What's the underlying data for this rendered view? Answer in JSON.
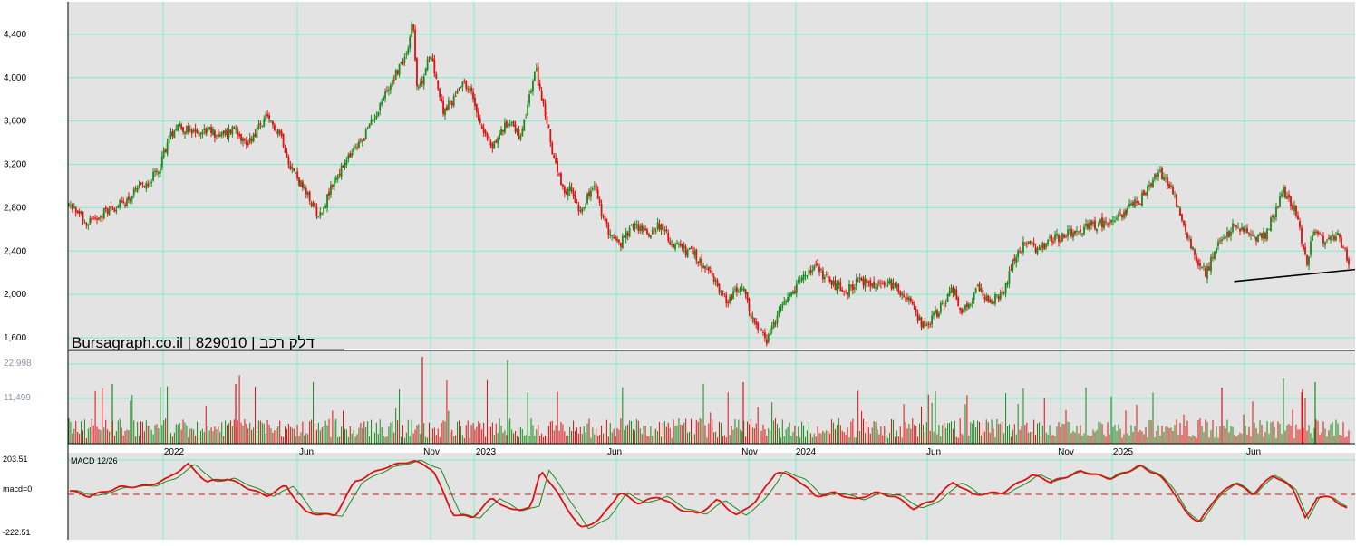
{
  "title": "Bursagraph.co.il | 829010 | דלק רכב",
  "colors": {
    "background": "#e3e3e3",
    "grid": "#7df0c6",
    "up": "#1a8a1a",
    "down": "#e01010",
    "macd_line": "#e01010",
    "signal_line": "#1a8a1a",
    "zero_line": "#e01010",
    "trend_line": "#000000"
  },
  "chart_data": [
    {
      "type": "candlestick",
      "title": "Bursagraph.co.il | 829010 | דלק רכב",
      "ylim": [
        1500,
        4700
      ],
      "y_ticks": [
        1600,
        2000,
        2400,
        2800,
        3200,
        3600,
        4000,
        4400
      ],
      "y_tick_labels": [
        "1,600",
        "2,000",
        "2,400",
        "2,800",
        "3,200",
        "3,600",
        "4,000",
        "4,400"
      ],
      "x_tick_labels": [
        "2022",
        "Jun",
        "Nov",
        "2023",
        "Jun",
        "Nov",
        "2024",
        "Jun",
        "Nov",
        "2025",
        "Jun"
      ],
      "grid": true,
      "close_path": [
        {
          "t": 0,
          "v": 2820
        },
        {
          "t": 0.01,
          "v": 2750
        },
        {
          "t": 0.02,
          "v": 2660
        },
        {
          "t": 0.035,
          "v": 2760
        },
        {
          "t": 0.055,
          "v": 2840
        },
        {
          "t": 0.075,
          "v": 3000
        },
        {
          "t": 0.09,
          "v": 3120
        },
        {
          "t": 0.1,
          "v": 3400
        },
        {
          "t": 0.11,
          "v": 3580
        },
        {
          "t": 0.125,
          "v": 3480
        },
        {
          "t": 0.14,
          "v": 3520
        },
        {
          "t": 0.155,
          "v": 3460
        },
        {
          "t": 0.17,
          "v": 3550
        },
        {
          "t": 0.18,
          "v": 3380
        },
        {
          "t": 0.19,
          "v": 3500
        },
        {
          "t": 0.2,
          "v": 3620
        },
        {
          "t": 0.215,
          "v": 3500
        },
        {
          "t": 0.225,
          "v": 3200
        },
        {
          "t": 0.24,
          "v": 2950
        },
        {
          "t": 0.255,
          "v": 2720
        },
        {
          "t": 0.27,
          "v": 3050
        },
        {
          "t": 0.285,
          "v": 3260
        },
        {
          "t": 0.3,
          "v": 3450
        },
        {
          "t": 0.315,
          "v": 3720
        },
        {
          "t": 0.33,
          "v": 4000
        },
        {
          "t": 0.343,
          "v": 4200
        },
        {
          "t": 0.35,
          "v": 4540
        },
        {
          "t": 0.355,
          "v": 3850
        },
        {
          "t": 0.365,
          "v": 4150
        },
        {
          "t": 0.37,
          "v": 4180
        },
        {
          "t": 0.38,
          "v": 3700
        },
        {
          "t": 0.39,
          "v": 3780
        },
        {
          "t": 0.4,
          "v": 3980
        },
        {
          "t": 0.41,
          "v": 3850
        },
        {
          "t": 0.42,
          "v": 3560
        },
        {
          "t": 0.43,
          "v": 3350
        },
        {
          "t": 0.44,
          "v": 3500
        },
        {
          "t": 0.45,
          "v": 3620
        },
        {
          "t": 0.46,
          "v": 3420
        },
        {
          "t": 0.47,
          "v": 3880
        },
        {
          "t": 0.475,
          "v": 4080
        },
        {
          "t": 0.485,
          "v": 3650
        },
        {
          "t": 0.495,
          "v": 3200
        },
        {
          "t": 0.505,
          "v": 2880
        },
        {
          "t": 0.51,
          "v": 3000
        },
        {
          "t": 0.52,
          "v": 2780
        },
        {
          "t": 0.535,
          "v": 3000
        },
        {
          "t": 0.545,
          "v": 2650
        },
        {
          "t": 0.56,
          "v": 2450
        },
        {
          "t": 0.575,
          "v": 2650
        },
        {
          "t": 0.59,
          "v": 2560
        },
        {
          "t": 0.6,
          "v": 2650
        },
        {
          "t": 0.615,
          "v": 2450
        },
        {
          "t": 0.635,
          "v": 2380
        },
        {
          "t": 0.655,
          "v": 2150
        },
        {
          "t": 0.67,
          "v": 1940
        },
        {
          "t": 0.685,
          "v": 2080
        },
        {
          "t": 0.69,
          "v": 1920
        },
        {
          "t": 0.7,
          "v": 1680
        },
        {
          "t": 0.71,
          "v": 1560
        },
        {
          "t": 0.725,
          "v": 1860
        },
        {
          "t": 0.735,
          "v": 1980
        },
        {
          "t": 0.745,
          "v": 2150
        },
        {
          "t": 0.76,
          "v": 2240
        },
        {
          "t": 0.775,
          "v": 2120
        },
        {
          "t": 0.79,
          "v": 2020
        },
        {
          "t": 0.805,
          "v": 2130
        },
        {
          "t": 0.82,
          "v": 2080
        },
        {
          "t": 0.84,
          "v": 2100
        },
        {
          "t": 0.855,
          "v": 1930
        },
        {
          "t": 0.87,
          "v": 1700
        },
        {
          "t": 0.885,
          "v": 1850
        },
        {
          "t": 0.9,
          "v": 2050
        },
        {
          "t": 0.91,
          "v": 1820
        },
        {
          "t": 0.925,
          "v": 2050
        },
        {
          "t": 0.935,
          "v": 1950
        },
        {
          "t": 0.95,
          "v": 1980
        },
        {
          "t": 0.96,
          "v": 2300
        },
        {
          "t": 0.975,
          "v": 2500
        },
        {
          "t": 0.985,
          "v": 2400
        },
        {
          "t": 1.0,
          "v": 2500
        }
      ],
      "close_path_part2": [
        {
          "t": 0,
          "v": 2500
        },
        {
          "t": 0.12,
          "v": 2620
        },
        {
          "t": 0.22,
          "v": 2700
        },
        {
          "t": 0.3,
          "v": 2880
        },
        {
          "t": 0.36,
          "v": 3150
        },
        {
          "t": 0.4,
          "v": 3000
        },
        {
          "t": 0.45,
          "v": 2600
        },
        {
          "t": 0.5,
          "v": 2250
        },
        {
          "t": 0.52,
          "v": 2200
        },
        {
          "t": 0.56,
          "v": 2450
        },
        {
          "t": 0.62,
          "v": 2650
        },
        {
          "t": 0.68,
          "v": 2500
        },
        {
          "t": 0.72,
          "v": 2550
        },
        {
          "t": 0.78,
          "v": 2950
        },
        {
          "t": 0.82,
          "v": 2780
        },
        {
          "t": 0.86,
          "v": 2250
        },
        {
          "t": 0.88,
          "v": 2620
        },
        {
          "t": 0.92,
          "v": 2500
        },
        {
          "t": 0.96,
          "v": 2560
        },
        {
          "t": 1.0,
          "v": 2300
        }
      ],
      "trend_line": {
        "from": {
          "date_fraction": 0.906,
          "value": 2120
        },
        "to": {
          "date_fraction": 1.0,
          "value": 2230
        }
      }
    },
    {
      "type": "bar",
      "name": "volume",
      "y_ticks": [
        11499,
        22998
      ],
      "y_tick_labels": [
        "11,499",
        "22,998"
      ],
      "ylim": [
        0,
        23000
      ]
    },
    {
      "type": "line",
      "name": "MACD 12/26",
      "ylim": [
        -222.51,
        203.51
      ],
      "y_tick_labels": [
        "203.51",
        "macd=0",
        "-222.51"
      ],
      "macd_path": [
        {
          "t": 0,
          "v": 10
        },
        {
          "t": 0.02,
          "v": -20
        },
        {
          "t": 0.05,
          "v": 30
        },
        {
          "t": 0.08,
          "v": 40
        },
        {
          "t": 0.1,
          "v": 80
        },
        {
          "t": 0.12,
          "v": 160
        },
        {
          "t": 0.14,
          "v": 60
        },
        {
          "t": 0.16,
          "v": 80
        },
        {
          "t": 0.18,
          "v": 30
        },
        {
          "t": 0.2,
          "v": -20
        },
        {
          "t": 0.22,
          "v": 40
        },
        {
          "t": 0.24,
          "v": -110
        },
        {
          "t": 0.27,
          "v": -130
        },
        {
          "t": 0.29,
          "v": 60
        },
        {
          "t": 0.32,
          "v": 140
        },
        {
          "t": 0.35,
          "v": 180
        },
        {
          "t": 0.37,
          "v": 130
        },
        {
          "t": 0.39,
          "v": -120
        },
        {
          "t": 0.41,
          "v": -140
        },
        {
          "t": 0.43,
          "v": -30
        },
        {
          "t": 0.45,
          "v": -100
        },
        {
          "t": 0.47,
          "v": -80
        },
        {
          "t": 0.48,
          "v": 130
        },
        {
          "t": 0.5,
          "v": -30
        },
        {
          "t": 0.52,
          "v": -200
        },
        {
          "t": 0.54,
          "v": -150
        },
        {
          "t": 0.56,
          "v": 0
        },
        {
          "t": 0.58,
          "v": -60
        },
        {
          "t": 0.6,
          "v": -20
        },
        {
          "t": 0.62,
          "v": -90
        },
        {
          "t": 0.64,
          "v": -120
        },
        {
          "t": 0.66,
          "v": -40
        },
        {
          "t": 0.68,
          "v": -130
        },
        {
          "t": 0.7,
          "v": -40
        },
        {
          "t": 0.72,
          "v": 120
        },
        {
          "t": 0.74,
          "v": 80
        },
        {
          "t": 0.76,
          "v": -20
        },
        {
          "t": 0.78,
          "v": 0
        },
        {
          "t": 0.8,
          "v": -40
        },
        {
          "t": 0.82,
          "v": 0
        },
        {
          "t": 0.84,
          "v": -20
        },
        {
          "t": 0.86,
          "v": -90
        },
        {
          "t": 0.88,
          "v": -40
        },
        {
          "t": 0.9,
          "v": 60
        },
        {
          "t": 0.92,
          "v": -10
        },
        {
          "t": 0.95,
          "v": 0
        },
        {
          "t": 0.98,
          "v": 100
        },
        {
          "t": 1.0,
          "v": 60
        }
      ],
      "macd_path_part2": [
        {
          "t": 0,
          "v": 60
        },
        {
          "t": 0.1,
          "v": 120
        },
        {
          "t": 0.2,
          "v": 80
        },
        {
          "t": 0.3,
          "v": 150
        },
        {
          "t": 0.36,
          "v": 100
        },
        {
          "t": 0.4,
          "v": 40
        },
        {
          "t": 0.45,
          "v": -100
        },
        {
          "t": 0.5,
          "v": -170
        },
        {
          "t": 0.55,
          "v": -40
        },
        {
          "t": 0.62,
          "v": 60
        },
        {
          "t": 0.68,
          "v": -10
        },
        {
          "t": 0.75,
          "v": 100
        },
        {
          "t": 0.82,
          "v": 20
        },
        {
          "t": 0.86,
          "v": -150
        },
        {
          "t": 0.9,
          "v": -20
        },
        {
          "t": 0.95,
          "v": -30
        },
        {
          "t": 1.0,
          "v": -90
        }
      ]
    }
  ]
}
